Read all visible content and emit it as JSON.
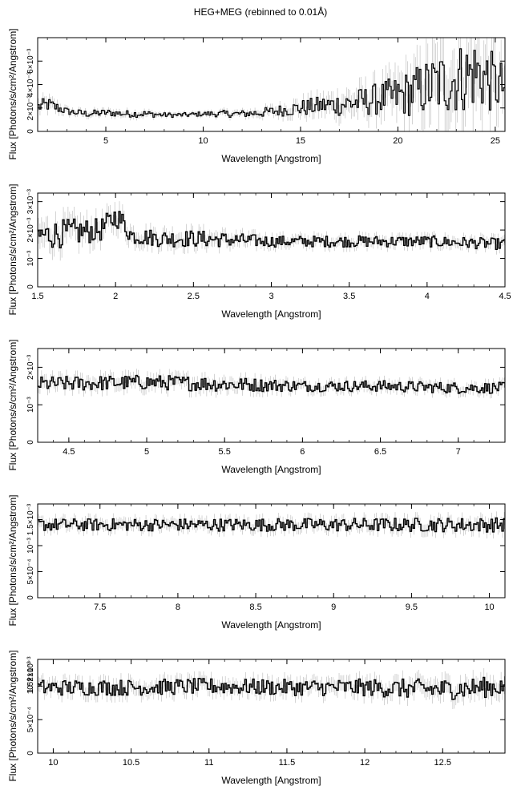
{
  "title": "HEG+MEG (rebinned to 0.01Å)",
  "chart_data": [
    {
      "type": "line",
      "xlabel": "Wavelength [Angstrom]",
      "ylabel": "Flux [Photons/s/cm²/Angstrom]",
      "xlim": [
        1.5,
        25.5
      ],
      "ylim": [
        0,
        0.008
      ],
      "xticks": [
        5,
        10,
        15,
        20,
        25
      ],
      "yticks": [
        0,
        0.002,
        0.004,
        0.006
      ],
      "ytick_labels": [
        "0",
        "2×10⁻³",
        "4×10⁻³",
        "6×10⁻³"
      ],
      "series": [
        {
          "x": [
            1.5,
            2,
            3,
            4,
            5,
            6,
            7,
            8,
            9,
            10,
            11,
            12,
            13,
            14,
            15,
            16,
            17,
            18,
            19,
            20,
            21,
            22,
            23,
            24,
            25,
            25.5
          ],
          "y": [
            0.0021,
            0.0023,
            0.0017,
            0.0015,
            0.0016,
            0.0015,
            0.0015,
            0.0014,
            0.0014,
            0.0015,
            0.0015,
            0.0015,
            0.0016,
            0.0018,
            0.002,
            0.0022,
            0.0023,
            0.0025,
            0.0028,
            0.003,
            0.0035,
            0.004,
            0.0045,
            0.005,
            0.004,
            0.0038
          ],
          "noise": [
            0.0006,
            0.0006,
            0.0003,
            0.0003,
            0.0003,
            0.0003,
            0.0003,
            0.0002,
            0.0002,
            0.0002,
            0.0003,
            0.0003,
            0.0004,
            0.0005,
            0.0007,
            0.0008,
            0.001,
            0.0012,
            0.0014,
            0.0018,
            0.0022,
            0.0028,
            0.003,
            0.0032,
            0.0025,
            0.002
          ],
          "step": 0.02
        }
      ]
    },
    {
      "type": "line",
      "xlabel": "Wavelength [Angstrom]",
      "ylabel": "Flux [Photons/s/cm²/Angstrom]",
      "xlim": [
        1.5,
        4.5
      ],
      "ylim": [
        0,
        0.0033
      ],
      "xticks": [
        1.5,
        2,
        2.5,
        3,
        3.5,
        4,
        4.5
      ],
      "yticks": [
        0,
        0.001,
        0.002,
        0.003
      ],
      "ytick_labels": [
        "0",
        "10⁻³",
        "2×10⁻³",
        "3×10⁻³"
      ],
      "series": [
        {
          "x": [
            1.5,
            1.7,
            1.9,
            2.0,
            2.05,
            2.1,
            2.3,
            2.5,
            3.0,
            3.5,
            4.0,
            4.5
          ],
          "y": [
            0.0018,
            0.0019,
            0.002,
            0.0025,
            0.0022,
            0.0018,
            0.0017,
            0.0017,
            0.0016,
            0.0016,
            0.0016,
            0.0015
          ],
          "noise": [
            0.0005,
            0.0005,
            0.0004,
            0.0004,
            0.0004,
            0.0003,
            0.0003,
            0.0003,
            0.0002,
            0.0002,
            0.0002,
            0.0002
          ],
          "step": 0.02
        }
      ]
    },
    {
      "type": "line",
      "xlabel": "Wavelength [Angstrom]",
      "ylabel": "Flux [Photons/s/cm²/Angstrom]",
      "xlim": [
        4.3,
        7.3
      ],
      "ylim": [
        0,
        0.0025
      ],
      "xticks": [
        4.5,
        5,
        5.5,
        6,
        6.5,
        7
      ],
      "yticks": [
        0,
        0.001,
        0.002
      ],
      "ytick_labels": [
        "0",
        "10⁻³",
        "2×10⁻³"
      ],
      "series": [
        {
          "x": [
            4.3,
            5.0,
            5.5,
            6.0,
            6.5,
            7.0,
            7.3
          ],
          "y": [
            0.00155,
            0.0016,
            0.00155,
            0.0015,
            0.0015,
            0.00145,
            0.00145
          ],
          "noise": [
            0.0002,
            0.0002,
            0.0002,
            0.00015,
            0.00015,
            0.00015,
            0.00015
          ],
          "step": 0.02
        }
      ]
    },
    {
      "type": "line",
      "xlabel": "Wavelength [Angstrom]",
      "ylabel": "Flux [Photons/s/cm²/Angstrom]",
      "xlim": [
        7.1,
        10.1
      ],
      "ylim": [
        0,
        0.0018
      ],
      "xticks": [
        7.5,
        8,
        8.5,
        9,
        9.5,
        10
      ],
      "yticks": [
        0,
        0.0005,
        0.001,
        0.0015
      ],
      "ytick_labels": [
        "0",
        "5×10⁻⁴",
        "10⁻³",
        "1.5×10⁻³"
      ],
      "series": [
        {
          "x": [
            7.1,
            8.0,
            9.0,
            10.1
          ],
          "y": [
            0.0014,
            0.0014,
            0.0014,
            0.0014
          ],
          "noise": [
            0.00012,
            0.00012,
            0.00013,
            0.00014
          ],
          "step": 0.02
        }
      ]
    },
    {
      "type": "line",
      "xlabel": "Wavelength [Angstrom]",
      "ylabel": "Flux [Photons/s/cm²/Angstrom]",
      "xlim": [
        9.9,
        12.9
      ],
      "ylim": [
        0,
        0.0014
      ],
      "xticks": [
        10,
        10.5,
        11,
        11.5,
        12,
        12.5
      ],
      "yticks": [
        0,
        0.0005,
        0.001
      ],
      "ytick_labels": [
        "0",
        "5×10⁻⁴",
        "10⁻³"
      ],
      "ytick_extra_labels": [
        "1.5×10⁻³",
        "2×10⁻³"
      ],
      "series": [
        {
          "x": [
            9.9,
            10.5,
            11.0,
            11.5,
            12.0,
            12.5,
            12.9
          ],
          "y": [
            0.00098,
            0.00098,
            0.001,
            0.00098,
            0.00098,
            0.00095,
            0.001
          ],
          "noise": [
            0.00012,
            0.00012,
            0.00012,
            0.00012,
            0.00013,
            0.00016,
            0.00015
          ],
          "step": 0.02
        }
      ]
    }
  ]
}
